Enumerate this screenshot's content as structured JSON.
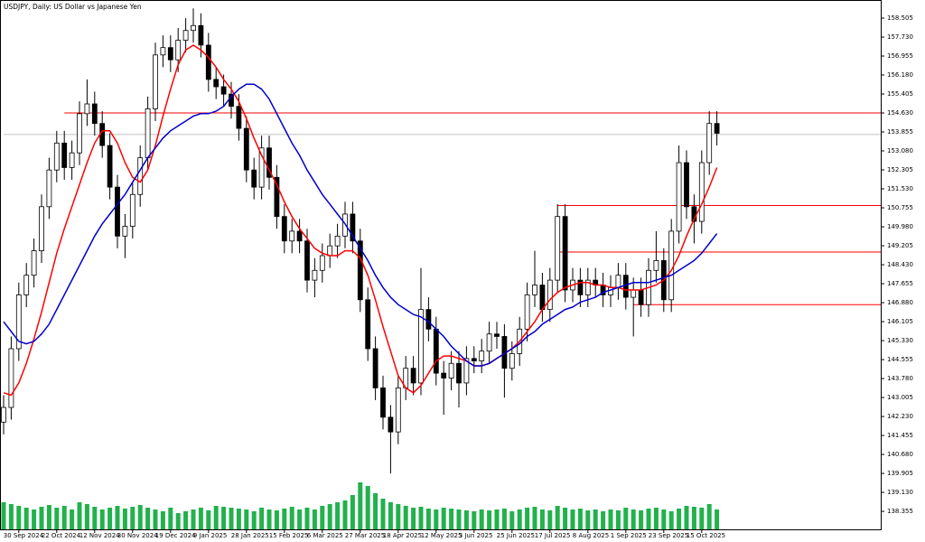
{
  "chart_data": {
    "type": "candlestick",
    "title": "USDJPY, Daily:  US Dollar vs Japanese Yen",
    "categories": [
      null,
      null,
      "30 Sep 2024",
      null,
      null,
      null,
      null,
      "22 Oct 2024",
      null,
      null,
      null,
      null,
      "12 Nov 2024",
      null,
      null,
      null,
      null,
      "30 Nov 2024",
      null,
      null,
      null,
      null,
      "19 Dec 2024",
      null,
      null,
      null,
      null,
      "9 Jan 2025",
      null,
      null,
      null,
      null,
      "28 Jan 2025",
      null,
      null,
      null,
      null,
      "15 Feb 2025",
      null,
      null,
      null,
      null,
      "6 Mar 2025",
      null,
      null,
      null,
      null,
      "27 Mar 2025",
      null,
      null,
      null,
      null,
      "18 Apr 2025",
      null,
      null,
      null,
      null,
      "12 May 2025",
      null,
      null,
      null,
      null,
      "3 Jun 2025",
      null,
      null,
      null,
      null,
      "25 Jun 2025",
      null,
      null,
      null,
      null,
      "17 Jul 2025",
      null,
      null,
      null,
      null,
      "8 Aug 2025",
      null,
      null,
      null,
      null,
      "1 Sep 2025",
      null,
      null,
      null,
      null,
      "23 Sep 2025",
      null,
      null,
      null,
      null,
      "15 Oct 2025",
      null,
      null
    ],
    "open": [
      142.0,
      142.6,
      145.0,
      147.2,
      148.0,
      149.0,
      150.8,
      152.3,
      153.4,
      152.4,
      153.0,
      154.6,
      155.0,
      154.2,
      153.3,
      151.6,
      149.6,
      150.0,
      151.3,
      152.8,
      154.8,
      157.0,
      157.3,
      156.8,
      157.6,
      158.0,
      158.2,
      157.4,
      156.0,
      155.7,
      155.4,
      154.9,
      154.0,
      152.3,
      151.6,
      153.2,
      152.0,
      150.4,
      149.4,
      149.8,
      149.4,
      147.8,
      148.2,
      148.8,
      149.2,
      149.6,
      150.5,
      149.4,
      147.0,
      145.0,
      143.4,
      142.2,
      141.6,
      143.4,
      144.2,
      143.6,
      146.6,
      145.8,
      144.0,
      143.8,
      144.4,
      143.6,
      144.6,
      144.5,
      144.9,
      145.6,
      145.5,
      144.2,
      144.8,
      145.8,
      147.2,
      147.6,
      146.6,
      147.8,
      150.4,
      147.4,
      147.8,
      147.2,
      147.8,
      147.6,
      147.2,
      147.5,
      148.0,
      147.1,
      147.4,
      146.8,
      148.2,
      148.6,
      147.0,
      149.8,
      152.6,
      150.8,
      150.2,
      152.6,
      154.2
    ],
    "high": [
      143.1,
      145.5,
      147.7,
      148.5,
      149.5,
      151.3,
      152.8,
      153.9,
      153.9,
      153.5,
      155.1,
      156.0,
      155.5,
      154.7,
      153.8,
      152.1,
      150.5,
      151.8,
      153.3,
      155.3,
      157.5,
      157.8,
      157.8,
      158.1,
      158.5,
      158.9,
      158.7,
      157.9,
      156.5,
      156.2,
      155.9,
      155.4,
      154.5,
      152.8,
      153.7,
      153.7,
      152.5,
      150.9,
      150.3,
      150.3,
      149.9,
      148.7,
      149.3,
      149.7,
      150.1,
      151.0,
      151.0,
      149.9,
      147.5,
      145.5,
      143.9,
      142.7,
      143.9,
      144.7,
      144.7,
      148.3,
      147.1,
      146.3,
      144.5,
      144.9,
      144.9,
      145.1,
      145.1,
      145.4,
      146.1,
      146.1,
      146.0,
      145.3,
      146.3,
      147.7,
      149.0,
      148.1,
      148.3,
      150.9,
      150.9,
      148.3,
      148.3,
      148.3,
      148.3,
      148.1,
      148.0,
      148.5,
      148.5,
      147.9,
      147.9,
      148.7,
      149.8,
      149.1,
      150.3,
      153.3,
      153.1,
      151.3,
      153.1,
      154.7,
      154.7
    ],
    "low": [
      141.5,
      142.1,
      144.5,
      146.7,
      147.5,
      148.5,
      150.3,
      151.8,
      151.9,
      151.9,
      152.5,
      154.1,
      153.7,
      152.8,
      151.1,
      149.1,
      148.7,
      149.5,
      150.8,
      152.3,
      154.3,
      156.5,
      156.3,
      156.3,
      157.1,
      157.5,
      156.9,
      155.5,
      155.2,
      154.9,
      154.4,
      153.5,
      151.8,
      151.1,
      151.1,
      151.5,
      149.9,
      148.9,
      148.9,
      148.9,
      147.3,
      147.1,
      147.7,
      148.3,
      148.7,
      149.1,
      148.9,
      146.5,
      144.5,
      142.9,
      141.7,
      139.9,
      141.1,
      142.9,
      143.1,
      143.1,
      145.3,
      143.5,
      142.3,
      143.3,
      142.6,
      143.1,
      144.0,
      144.0,
      144.4,
      145.0,
      143.0,
      143.7,
      144.3,
      145.3,
      146.7,
      146.1,
      146.1,
      147.3,
      146.9,
      146.9,
      146.7,
      146.7,
      147.1,
      146.7,
      146.7,
      147.0,
      146.6,
      145.5,
      146.3,
      146.3,
      147.7,
      146.5,
      146.5,
      149.3,
      150.3,
      149.3,
      149.7,
      152.1,
      153.3
    ],
    "close": [
      142.6,
      145.0,
      147.2,
      148.0,
      149.0,
      150.8,
      152.3,
      153.4,
      152.4,
      153.0,
      154.6,
      155.0,
      154.2,
      153.3,
      151.6,
      149.6,
      150.0,
      151.3,
      152.8,
      154.8,
      157.0,
      157.3,
      156.8,
      157.6,
      158.0,
      158.2,
      157.4,
      156.0,
      155.7,
      155.4,
      154.9,
      154.0,
      152.3,
      151.6,
      153.2,
      152.0,
      150.4,
      149.4,
      149.8,
      149.4,
      147.8,
      148.2,
      148.8,
      149.2,
      149.6,
      150.5,
      149.4,
      147.0,
      145.0,
      143.4,
      142.2,
      141.6,
      143.4,
      144.2,
      143.6,
      146.6,
      145.8,
      144.0,
      143.8,
      144.4,
      143.6,
      144.6,
      144.5,
      144.9,
      145.6,
      145.5,
      144.2,
      144.8,
      145.8,
      147.2,
      147.6,
      146.6,
      147.8,
      150.4,
      147.4,
      147.8,
      147.2,
      147.8,
      147.6,
      147.2,
      147.5,
      148.0,
      147.1,
      147.4,
      146.8,
      148.2,
      148.6,
      147.0,
      149.8,
      152.6,
      150.8,
      150.2,
      152.6,
      154.2,
      153.8
    ],
    "lines": [
      {
        "color": "#ff0000",
        "values": [
          143.2,
          143.1,
          143.6,
          144.4,
          145.4,
          146.5,
          147.7,
          148.9,
          149.9,
          150.8,
          151.7,
          152.6,
          153.4,
          153.9,
          153.9,
          153.4,
          152.6,
          152.0,
          151.8,
          152.3,
          153.3,
          154.5,
          155.6,
          156.6,
          157.2,
          157.4,
          157.2,
          156.9,
          156.5,
          156.0,
          155.6,
          155.1,
          154.4,
          153.6,
          152.9,
          152.3,
          151.7,
          151.0,
          150.4,
          149.9,
          149.5,
          149.1,
          148.9,
          148.8,
          148.8,
          149.0,
          149.0,
          148.7,
          148.0,
          147.0,
          145.9,
          144.9,
          143.9,
          143.4,
          143.2,
          143.5,
          144.0,
          144.5,
          144.7,
          144.7,
          144.6,
          144.5,
          144.3,
          144.3,
          144.4,
          144.6,
          144.8,
          145.0,
          145.3,
          145.7,
          146.1,
          146.6,
          147.0,
          147.3,
          147.5,
          147.6,
          147.7,
          147.7,
          147.6,
          147.6,
          147.5,
          147.5,
          147.4,
          147.4,
          147.4,
          147.5,
          147.6,
          147.8,
          148.2,
          148.8,
          149.6,
          150.3,
          150.9,
          151.6,
          152.4
        ]
      },
      {
        "color": "#0000cc",
        "values": [
          146.1,
          145.7,
          145.3,
          145.2,
          145.3,
          145.6,
          146.0,
          146.6,
          147.2,
          147.8,
          148.4,
          149.0,
          149.6,
          150.1,
          150.5,
          150.9,
          151.3,
          151.8,
          152.3,
          152.8,
          153.2,
          153.6,
          153.9,
          154.1,
          154.3,
          154.5,
          154.6,
          154.6,
          154.7,
          154.9,
          155.3,
          155.6,
          155.8,
          155.8,
          155.6,
          155.2,
          154.6,
          154.0,
          153.4,
          152.9,
          152.3,
          151.8,
          151.3,
          150.9,
          150.5,
          150.1,
          149.6,
          149.1,
          148.6,
          148.0,
          147.5,
          147.1,
          146.8,
          146.6,
          146.4,
          146.3,
          146.1,
          145.8,
          145.5,
          145.1,
          144.8,
          144.5,
          144.3,
          144.3,
          144.4,
          144.6,
          144.8,
          145.0,
          145.2,
          145.5,
          145.7,
          146.0,
          146.2,
          146.4,
          146.6,
          146.7,
          146.9,
          147.0,
          147.1,
          147.3,
          147.4,
          147.5,
          147.6,
          147.7,
          147.7,
          147.7,
          147.8,
          147.9,
          148.0,
          148.2,
          148.4,
          148.6,
          148.9,
          149.3,
          149.7
        ]
      }
    ],
    "volume": [
      30,
      28,
      26,
      24,
      22,
      25,
      27,
      24,
      26,
      22,
      30,
      28,
      25,
      22,
      24,
      26,
      23,
      25,
      27,
      24,
      22,
      20,
      24,
      18,
      20,
      22,
      24,
      21,
      26,
      25,
      24,
      23,
      22,
      20,
      24,
      22,
      21,
      23,
      25,
      22,
      24,
      22,
      26,
      28,
      30,
      32,
      38,
      52,
      48,
      40,
      34,
      30,
      28,
      26,
      24,
      25,
      23,
      22,
      24,
      23,
      22,
      21,
      20,
      22,
      21,
      22,
      23,
      20,
      22,
      24,
      25,
      22,
      21,
      26,
      24,
      22,
      23,
      21,
      22,
      20,
      22,
      21,
      24,
      22,
      21,
      23,
      24,
      22,
      20,
      23,
      26,
      25,
      24,
      28,
      22
    ],
    "volume_color": "#22b14c",
    "levels": [
      {
        "value": 154.63,
        "start": 8,
        "color": "#ff0000"
      },
      {
        "value": 150.85,
        "start": 73,
        "color": "#ff0000"
      },
      {
        "value": 148.95,
        "start": 73,
        "color": "#ff0000"
      },
      {
        "value": 146.8,
        "start": 83,
        "color": "#ff0000"
      },
      {
        "value": 153.75,
        "start": 0,
        "color": "#c0c0c0"
      }
    ],
    "ylim": [
      137.62,
      159.17
    ],
    "yticks": [
      158.505,
      {
        "value": 157.73,
        "label": "157.730"
      },
      156.955,
      {
        "value": 156.18,
        "label": "156.180"
      },
      155.405,
      {
        "value": 154.63,
        "label": "154.630"
      },
      153.855,
      {
        "value": 153.08,
        "label": "153.080"
      },
      152.305,
      {
        "value": 151.53,
        "label": "151.530"
      },
      150.755,
      {
        "value": 149.98,
        "label": "149.980"
      },
      149.205,
      {
        "value": 148.43,
        "label": "148.430"
      },
      147.655,
      {
        "value": 146.88,
        "label": "146.880"
      },
      146.105,
      {
        "value": 145.33,
        "label": "145.330"
      },
      144.555,
      {
        "value": 143.78,
        "label": "143.780"
      },
      143.005,
      {
        "value": 142.23,
        "label": "142.230"
      },
      141.455,
      {
        "value": 140.68,
        "label": "140.680"
      },
      139.905,
      {
        "value": 139.13,
        "label": "139.130"
      },
      138.355
    ]
  }
}
